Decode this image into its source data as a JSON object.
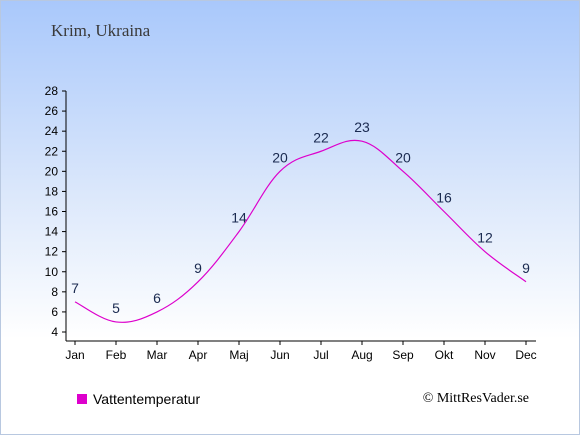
{
  "subtitle": "Krim, Ukraina",
  "legend_label": "Vattentemperatur",
  "credit": "© MittResVader.se",
  "colors": {
    "series": "#dd00cc",
    "label": "#1a2a50",
    "axis": "#000000"
  },
  "chart_data": {
    "type": "line",
    "categories": [
      "Jan",
      "Feb",
      "Mar",
      "Apr",
      "Maj",
      "Jun",
      "Jul",
      "Aug",
      "Sep",
      "Okt",
      "Nov",
      "Dec"
    ],
    "series": [
      {
        "name": "Vattentemperatur",
        "values": [
          7,
          5,
          6,
          9,
          14,
          20,
          22,
          23,
          20,
          16,
          12,
          9
        ]
      }
    ],
    "yticks": [
      4,
      6,
      8,
      10,
      12,
      14,
      16,
      18,
      20,
      22,
      24,
      26,
      28
    ],
    "ylim": [
      4,
      28
    ],
    "grid": false,
    "legend_position": "bottom-left"
  }
}
